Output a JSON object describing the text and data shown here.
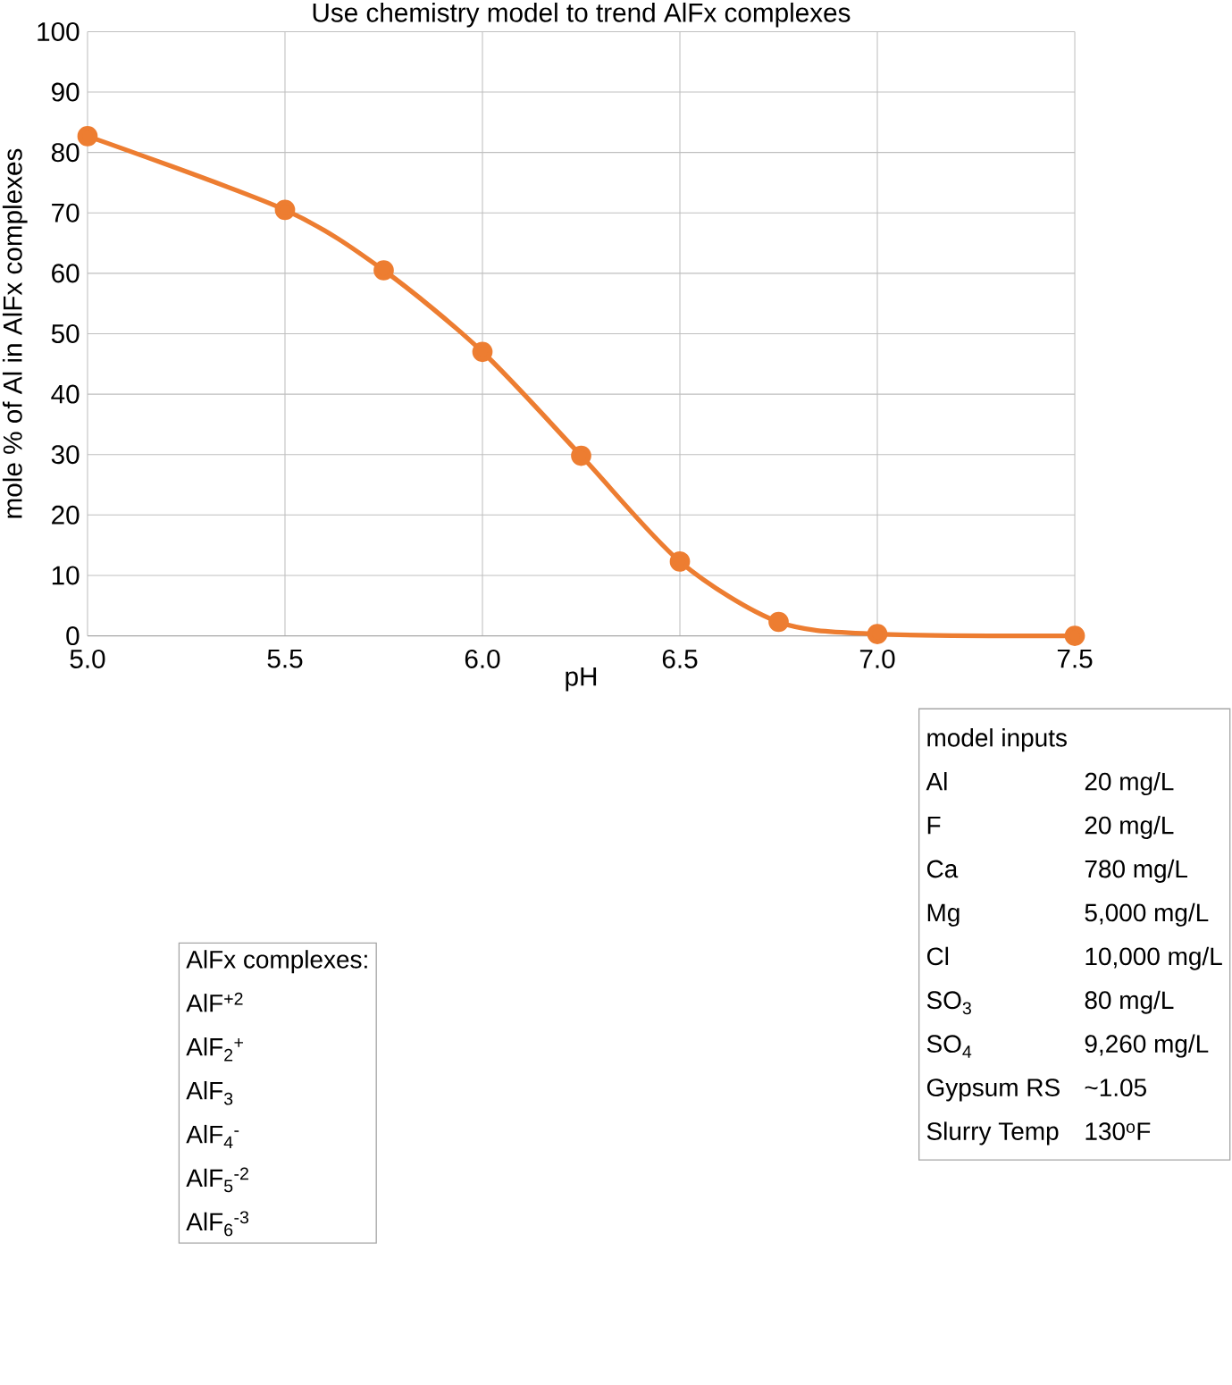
{
  "chart_data": {
    "type": "line",
    "title": "Use chemistry model to trend AlFx complexes",
    "xlabel": "pH",
    "ylabel": "mole % of Al in AlFx complexes",
    "x": [
      5.0,
      5.5,
      5.75,
      6.0,
      6.25,
      6.5,
      6.75,
      7.0,
      7.5
    ],
    "series": [
      {
        "color": "#ed7d31",
        "values": [
          82.7,
          70.5,
          60.5,
          47.0,
          29.8,
          12.3,
          2.3,
          0.3,
          0.0
        ]
      }
    ],
    "xlim": [
      5.0,
      7.5
    ],
    "ylim": [
      0,
      100
    ],
    "xticks": [
      {
        "value": 5.0,
        "label": "5.0"
      },
      {
        "value": 5.5,
        "label": "5.5"
      },
      {
        "value": 6.0,
        "label": "6.0"
      },
      {
        "value": 6.5,
        "label": "6.5"
      },
      {
        "value": 7.0,
        "label": "7.0"
      },
      {
        "value": 7.5,
        "label": "7.5"
      }
    ],
    "yticks": [
      0,
      10,
      20,
      30,
      40,
      50,
      60,
      70,
      80,
      90,
      100
    ],
    "grid": true,
    "marker": "circle",
    "line_style": "solid",
    "annotations": [
      "AlFx complexes:",
      "AlF$^{+2}$",
      "AlF$_{2}$$^{+}$",
      "AlF$_{3}$",
      "AlF$_{4}$$^{-}$",
      "AlF$_{5}$$^{-2}$",
      "AlF$_{6}$$^{-3}$",
      "model inputs",
      "Al",
      "20 mg/L",
      "F",
      "20 mg/L",
      "Ca",
      "780 mg/L",
      "Mg",
      "5,000 mg/L",
      "Cl",
      "10,000 mg/L",
      "SO$_{3}$",
      "80 mg/L",
      "SO$_{4}$",
      "9,260 mg/L",
      "Gypsum RS",
      "~1.05",
      "Slurry Temp",
      "130$^{o}$F"
    ]
  }
}
